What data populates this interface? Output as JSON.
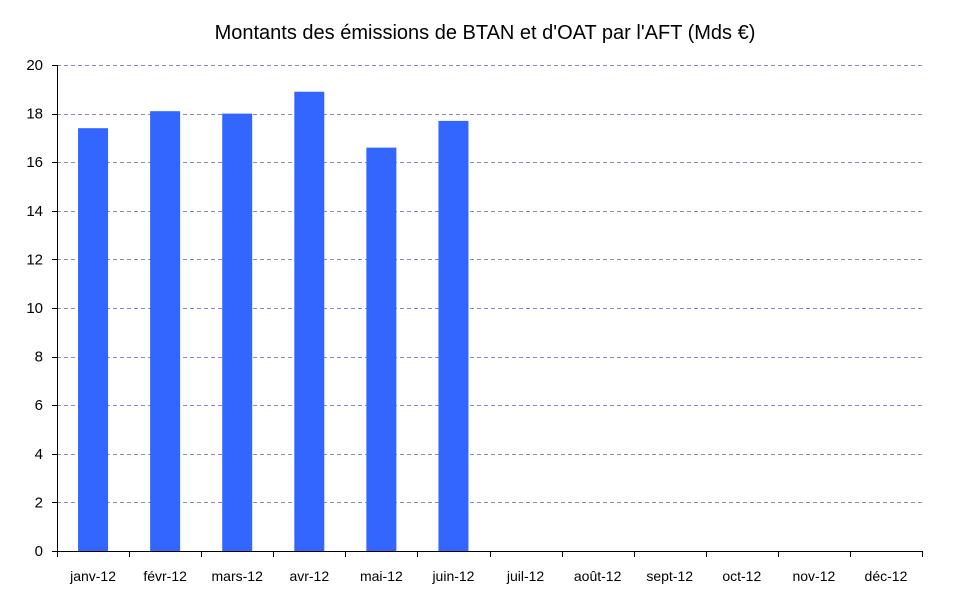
{
  "chart_data": {
    "type": "bar",
    "title": "Montants des émissions de BTAN et d'OAT par l'AFT (Mds €)",
    "xlabel": "",
    "ylabel": "",
    "categories": [
      "janv-12",
      "févr-12",
      "mars-12",
      "avr-12",
      "mai-12",
      "juin-12",
      "juil-12",
      "août-12",
      "sept-12",
      "oct-12",
      "nov-12",
      "déc-12"
    ],
    "values": [
      17.4,
      18.1,
      18.0,
      18.9,
      16.6,
      17.7,
      null,
      null,
      null,
      null,
      null,
      null
    ],
    "ylim": [
      0,
      20
    ],
    "yticks": [
      0,
      2,
      4,
      6,
      8,
      10,
      12,
      14,
      16,
      18,
      20
    ],
    "grid": true,
    "legend": "none",
    "colors": {
      "bar": "#3366ff",
      "grid": "#8888cc",
      "axis": "#000000"
    }
  }
}
